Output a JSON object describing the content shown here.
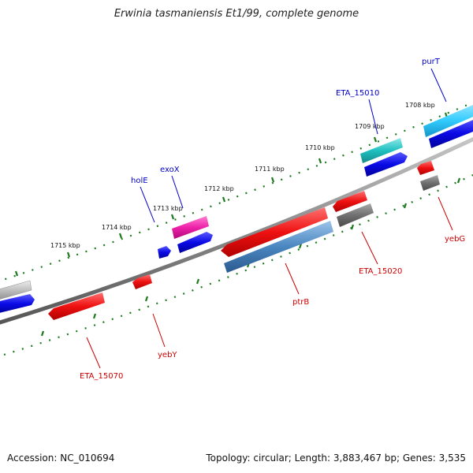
{
  "title": "Erwinia tasmaniensis Et1/99, complete genome",
  "footer": {
    "accession": "Accession: NC_010694",
    "topology": "Topology: circular; Length: 3,883,467 bp; Genes: 3,535"
  },
  "scale_labels": [
    "1708 kbp",
    "1709 kbp",
    "1710 kbp",
    "1711 kbp",
    "1712 kbp",
    "1713 kbp",
    "1714 kbp",
    "1715 kbp"
  ],
  "gene_labels": {
    "purT": "purT",
    "ETA_15010": "ETA_15010",
    "exoX": "exoX",
    "holE": "holE",
    "yebG": "yebG",
    "ETA_15020": "ETA_15020",
    "ptrB": "ptrB",
    "yebY": "yebY",
    "ETA_15070": "ETA_15070"
  },
  "colors": {
    "backbone": "#8a8a8a",
    "tick": "#1e7a1e",
    "forward_label": "#0000cc",
    "reverse_label": "#cc0000",
    "blue_feature": "#0a0ae6",
    "red_feature": "#ee1111",
    "gray_feature": "#707070",
    "cyan_feature": "#33ccff",
    "teal_feature": "#20c0c0",
    "pink_feature": "#ee22aa",
    "steelblue_feature": "#4a86c0",
    "silver_feature": "#bdbdbd"
  }
}
